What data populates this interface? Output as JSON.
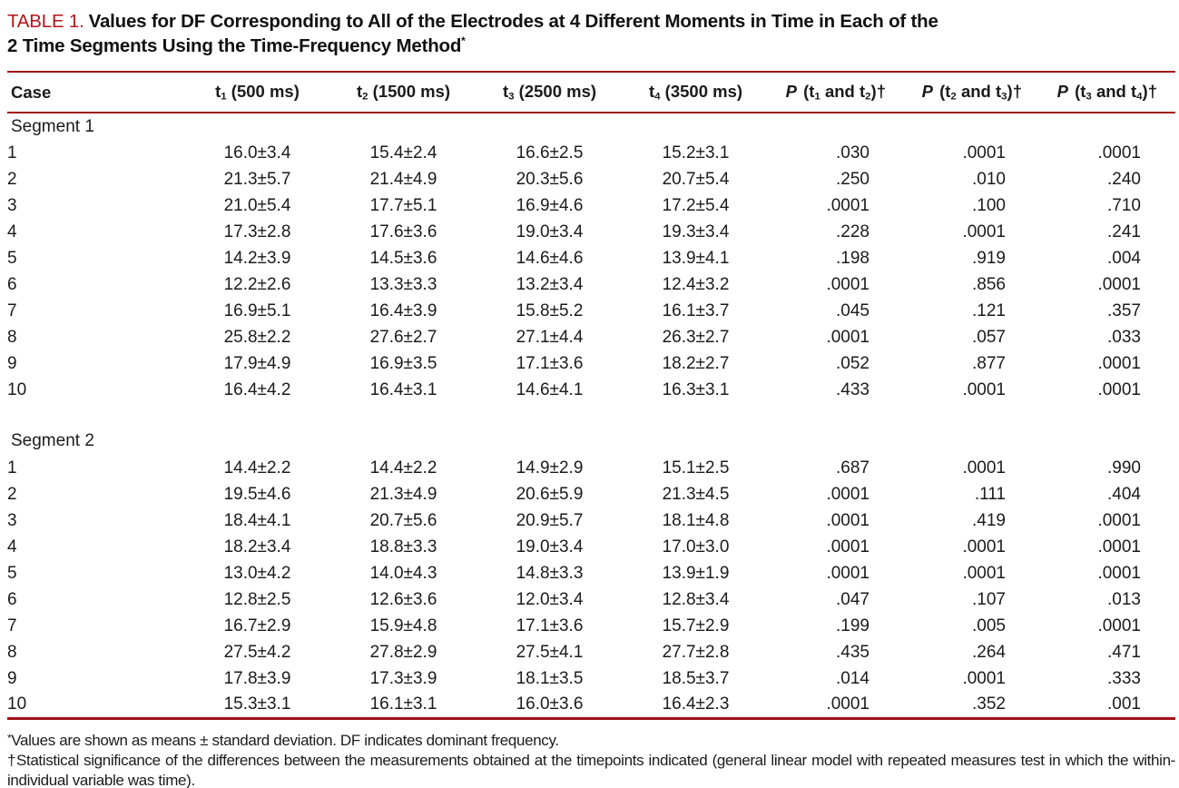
{
  "colors": {
    "accent_red": "#b2151a",
    "rule_red": "#a01217",
    "text": "#1b1b1b"
  },
  "title": {
    "label": "TABLE 1.",
    "text_line1": "Values for DF Corresponding to All of the Electrodes at 4 Different Moments in Time in Each of the",
    "text_line2": "2 Time Segments Using the Time-Frequency Method",
    "footnote_marker": "*"
  },
  "table": {
    "columns": [
      {
        "name": "case",
        "align": "left",
        "segments": [
          {
            "t": "Case"
          }
        ]
      },
      {
        "name": "t1",
        "align": "center",
        "segments": [
          {
            "t": "t"
          },
          {
            "t": "1",
            "sub": true
          },
          {
            "t": " (500 ms)"
          }
        ]
      },
      {
        "name": "t2",
        "align": "center",
        "segments": [
          {
            "t": "t"
          },
          {
            "t": "2",
            "sub": true
          },
          {
            "t": " (1500 ms)"
          }
        ]
      },
      {
        "name": "t3",
        "align": "center",
        "segments": [
          {
            "t": "t"
          },
          {
            "t": "3",
            "sub": true
          },
          {
            "t": " (2500 ms)"
          }
        ]
      },
      {
        "name": "t4",
        "align": "center",
        "segments": [
          {
            "t": "t"
          },
          {
            "t": "4",
            "sub": true
          },
          {
            "t": " (3500 ms)"
          }
        ]
      },
      {
        "name": "p12",
        "align": "right",
        "segments": [
          {
            "t": "P",
            "italic": true
          },
          {
            "t": " (t"
          },
          {
            "t": "1",
            "sub": true
          },
          {
            "t": " and t"
          },
          {
            "t": "2",
            "sub": true
          },
          {
            "t": ")†"
          }
        ]
      },
      {
        "name": "p23",
        "align": "right",
        "segments": [
          {
            "t": "P",
            "italic": true
          },
          {
            "t": " (t"
          },
          {
            "t": "2",
            "sub": true
          },
          {
            "t": " and t"
          },
          {
            "t": "3",
            "sub": true
          },
          {
            "t": ")†"
          }
        ]
      },
      {
        "name": "p34",
        "align": "right",
        "segments": [
          {
            "t": "P",
            "italic": true
          },
          {
            "t": " (t"
          },
          {
            "t": "3",
            "sub": true
          },
          {
            "t": " and t"
          },
          {
            "t": "4",
            "sub": true
          },
          {
            "t": ")†"
          }
        ]
      }
    ],
    "segments": [
      {
        "label": "Segment 1",
        "rows": [
          {
            "case": "1",
            "values": [
              "16.0±3.4",
              "15.4±2.4",
              "16.6±2.5",
              "15.2±3.1",
              ".030",
              ".0001",
              ".0001"
            ]
          },
          {
            "case": "2",
            "values": [
              "21.3±5.7",
              "21.4±4.9",
              "20.3±5.6",
              "20.7±5.4",
              ".250",
              ".010",
              ".240"
            ]
          },
          {
            "case": "3",
            "values": [
              "21.0±5.4",
              "17.7±5.1",
              "16.9±4.6",
              "17.2±5.4",
              ".0001",
              ".100",
              ".710"
            ]
          },
          {
            "case": "4",
            "values": [
              "17.3±2.8",
              "17.6±3.6",
              "19.0±3.4",
              "19.3±3.4",
              ".228",
              ".0001",
              ".241"
            ]
          },
          {
            "case": "5",
            "values": [
              "14.2±3.9",
              "14.5±3.6",
              "14.6±4.6",
              "13.9±4.1",
              ".198",
              ".919",
              ".004"
            ]
          },
          {
            "case": "6",
            "values": [
              "12.2±2.6",
              "13.3±3.3",
              "13.2±3.4",
              "12.4±3.2",
              ".0001",
              ".856",
              ".0001"
            ]
          },
          {
            "case": "7",
            "values": [
              "16.9±5.1",
              "16.4±3.9",
              "15.8±5.2",
              "16.1±3.7",
              ".045",
              ".121",
              ".357"
            ]
          },
          {
            "case": "8",
            "values": [
              "25.8±2.2",
              "27.6±2.7",
              "27.1±4.4",
              "26.3±2.7",
              ".0001",
              ".057",
              ".033"
            ]
          },
          {
            "case": "9",
            "values": [
              "17.9±4.9",
              "16.9±3.5",
              "17.1±3.6",
              "18.2±2.7",
              ".052",
              ".877",
              ".0001"
            ]
          },
          {
            "case": "10",
            "values": [
              "16.4±4.2",
              "16.4±3.1",
              "14.6±4.1",
              "16.3±3.1",
              ".433",
              ".0001",
              ".0001"
            ]
          }
        ]
      },
      {
        "label": "Segment 2",
        "rows": [
          {
            "case": "1",
            "values": [
              "14.4±2.2",
              "14.4±2.2",
              "14.9±2.9",
              "15.1±2.5",
              ".687",
              ".0001",
              ".990"
            ]
          },
          {
            "case": "2",
            "values": [
              "19.5±4.6",
              "21.3±4.9",
              "20.6±5.9",
              "21.3±4.5",
              ".0001",
              ".111",
              ".404"
            ]
          },
          {
            "case": "3",
            "values": [
              "18.4±4.1",
              "20.7±5.6",
              "20.9±5.7",
              "18.1±4.8",
              ".0001",
              ".419",
              ".0001"
            ]
          },
          {
            "case": "4",
            "values": [
              "18.2±3.4",
              "18.8±3.3",
              "19.0±3.4",
              "17.0±3.0",
              ".0001",
              ".0001",
              ".0001"
            ]
          },
          {
            "case": "5",
            "values": [
              "13.0±4.2",
              "14.0±4.3",
              "14.8±3.3",
              "13.9±1.9",
              ".0001",
              ".0001",
              ".0001"
            ]
          },
          {
            "case": "6",
            "values": [
              "12.8±2.5",
              "12.6±3.6",
              "12.0±3.4",
              "12.8±3.4",
              ".047",
              ".107",
              ".013"
            ]
          },
          {
            "case": "7",
            "values": [
              "16.7±2.9",
              "15.9±4.8",
              "17.1±3.6",
              "15.7±2.9",
              ".199",
              ".005",
              ".0001"
            ]
          },
          {
            "case": "8",
            "values": [
              "27.5±4.2",
              "27.8±2.9",
              "27.5±4.1",
              "27.7±2.8",
              ".435",
              ".264",
              ".471"
            ]
          },
          {
            "case": "9",
            "values": [
              "17.8±3.9",
              "17.3±3.9",
              "18.1±3.5",
              "18.5±3.7",
              ".014",
              ".0001",
              ".333"
            ]
          },
          {
            "case": "10",
            "values": [
              "15.3±3.1",
              "16.1±3.1",
              "16.0±3.6",
              "16.4±2.3",
              ".0001",
              ".352",
              ".001"
            ]
          }
        ]
      }
    ]
  },
  "footnotes": [
    {
      "symbol": "*",
      "superscript": true,
      "text": "Values are shown as means ± standard deviation. DF indicates dominant frequency."
    },
    {
      "symbol": "†",
      "superscript": false,
      "text": "Statistical significance of the differences between the measurements obtained at the timepoints indicated (general linear model with repeated measures test in which the within-individual variable was time)."
    }
  ]
}
